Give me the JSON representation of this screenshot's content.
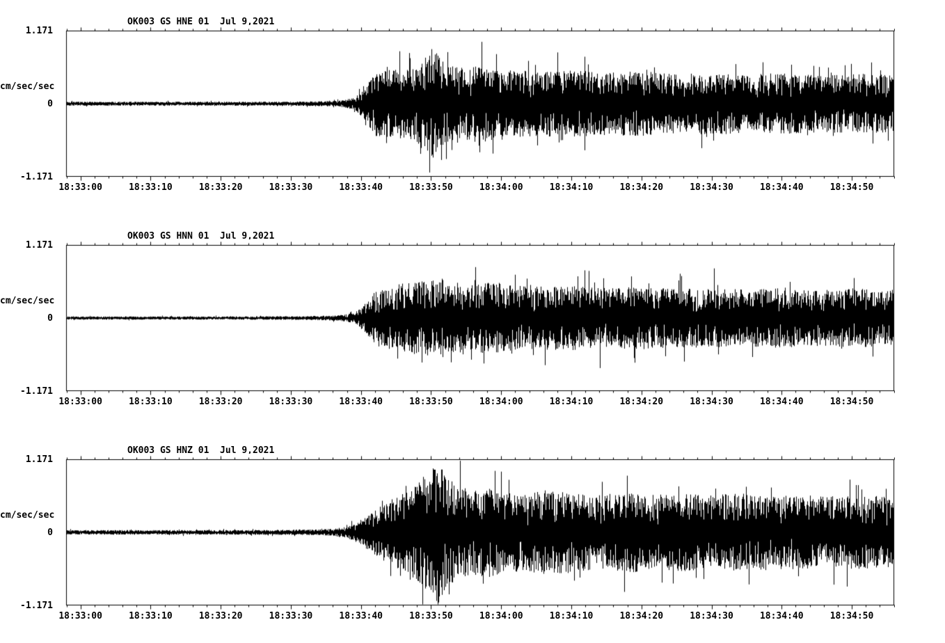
{
  "page": {
    "background_color": "#ffffff",
    "trace_color": "#000000"
  },
  "chart_data": [
    {
      "type": "line",
      "kind": "seismogram",
      "title": "OK003_GS_HNE_01  Jul 9,2021",
      "ylabel": "cm/sec/sec",
      "ylim": [
        -1.171,
        1.171
      ],
      "y_tick_labels": [
        "1.171",
        "0",
        "-1.171"
      ],
      "x_tick_labels": [
        "18:33:00",
        "18:33:10",
        "18:33:20",
        "18:33:30",
        "18:33:40",
        "18:33:50",
        "18:34:00",
        "18:34:10",
        "18:34:20",
        "18:34:30",
        "18:34:40",
        "18:34:50"
      ],
      "x_tick_seconds": [
        0,
        10,
        20,
        30,
        40,
        50,
        60,
        70,
        80,
        90,
        100,
        110
      ],
      "x_range_seconds": [
        -2,
        116
      ],
      "x_minor_tick_seconds": 2,
      "grid": false,
      "legend": "none",
      "envelope": {
        "t_seconds": [
          -2,
          20,
          30,
          35,
          37,
          39,
          40.5,
          42,
          44,
          47,
          49,
          50,
          51,
          52,
          54,
          57,
          60,
          65,
          70,
          75,
          80,
          85,
          90,
          95,
          100,
          105,
          110,
          116
        ],
        "amplitude": [
          0.03,
          0.03,
          0.032,
          0.04,
          0.05,
          0.09,
          0.25,
          0.5,
          0.52,
          0.55,
          0.7,
          0.85,
          0.75,
          0.6,
          0.55,
          0.6,
          0.52,
          0.5,
          0.52,
          0.48,
          0.5,
          0.45,
          0.48,
          0.45,
          0.47,
          0.44,
          0.46,
          0.45
        ]
      }
    },
    {
      "type": "line",
      "kind": "seismogram",
      "title": "OK003_GS_HNN_01  Jul 9,2021",
      "ylabel": "cm/sec/sec",
      "ylim": [
        -1.171,
        1.171
      ],
      "y_tick_labels": [
        "1.171",
        "0",
        "-1.171"
      ],
      "x_tick_labels": [
        "18:33:00",
        "18:33:10",
        "18:33:20",
        "18:33:30",
        "18:33:40",
        "18:33:50",
        "18:34:00",
        "18:34:10",
        "18:34:20",
        "18:34:30",
        "18:34:40",
        "18:34:50"
      ],
      "x_tick_seconds": [
        0,
        10,
        20,
        30,
        40,
        50,
        60,
        70,
        80,
        90,
        100,
        110
      ],
      "x_range_seconds": [
        -2,
        116
      ],
      "x_minor_tick_seconds": 2,
      "grid": false,
      "legend": "none",
      "envelope": {
        "t_seconds": [
          -2,
          20,
          30,
          35,
          37,
          39,
          40.5,
          42,
          44,
          47,
          50,
          52,
          55,
          58,
          60,
          65,
          70,
          75,
          80,
          85,
          90,
          95,
          100,
          105,
          110,
          116
        ],
        "amplitude": [
          0.025,
          0.025,
          0.028,
          0.035,
          0.045,
          0.08,
          0.22,
          0.42,
          0.5,
          0.55,
          0.58,
          0.62,
          0.5,
          0.55,
          0.52,
          0.48,
          0.5,
          0.46,
          0.48,
          0.45,
          0.46,
          0.44,
          0.46,
          0.43,
          0.45,
          0.44
        ]
      }
    },
    {
      "type": "line",
      "kind": "seismogram",
      "title": "OK003_GS_HNZ_01  Jul 9,2021",
      "ylabel": "cm/sec/sec",
      "ylim": [
        -1.171,
        1.171
      ],
      "y_tick_labels": [
        "1.171",
        "0",
        "-1.171"
      ],
      "x_tick_labels": [
        "18:33:00",
        "18:33:10",
        "18:33:20",
        "18:33:30",
        "18:33:40",
        "18:33:50",
        "18:34:00",
        "18:34:10",
        "18:34:20",
        "18:34:30",
        "18:34:40",
        "18:34:50"
      ],
      "x_tick_seconds": [
        0,
        10,
        20,
        30,
        40,
        50,
        60,
        70,
        80,
        90,
        100,
        110
      ],
      "x_range_seconds": [
        -2,
        116
      ],
      "x_minor_tick_seconds": 2,
      "grid": false,
      "legend": "none",
      "envelope": {
        "t_seconds": [
          -2,
          20,
          30,
          34,
          36,
          38,
          40,
          42,
          44,
          46,
          48,
          50,
          51,
          52,
          54,
          56,
          58,
          60,
          63,
          66,
          70,
          74,
          78,
          82,
          86,
          90,
          94,
          98,
          102,
          106,
          110,
          116
        ],
        "amplitude": [
          0.035,
          0.035,
          0.04,
          0.045,
          0.055,
          0.09,
          0.2,
          0.35,
          0.5,
          0.6,
          0.75,
          1.05,
          1.15,
          0.85,
          0.7,
          0.65,
          0.7,
          0.62,
          0.6,
          0.65,
          0.62,
          0.58,
          0.62,
          0.58,
          0.6,
          0.57,
          0.6,
          0.56,
          0.58,
          0.55,
          0.57,
          0.55
        ]
      }
    }
  ]
}
